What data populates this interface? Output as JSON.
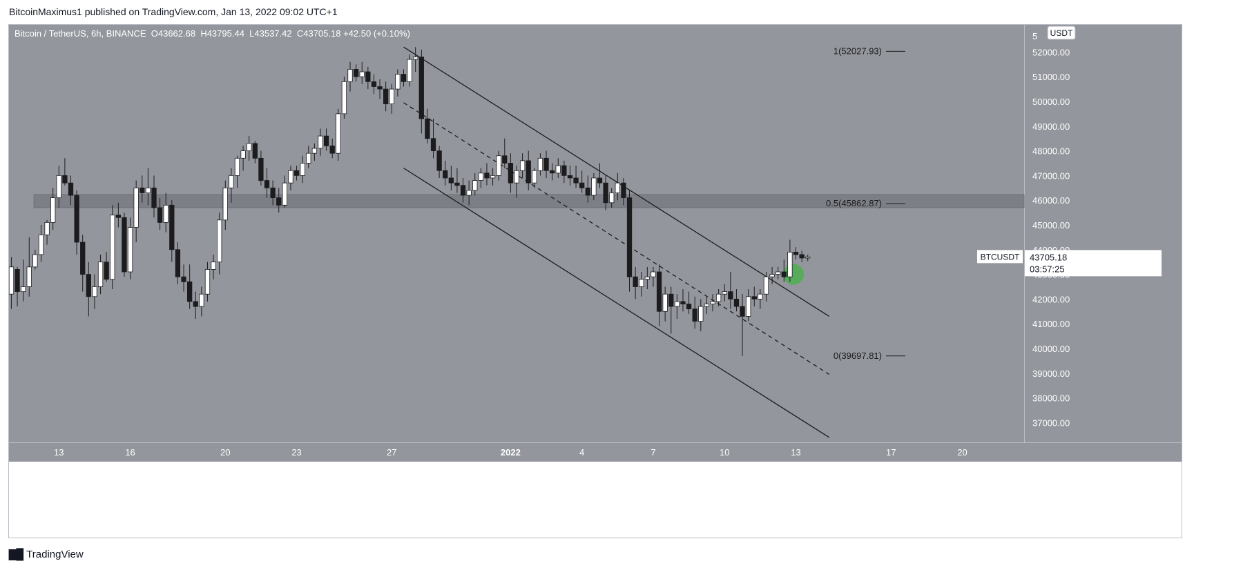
{
  "header": {
    "published_line": "BitcoinMaximus1 published on TradingView.com, Jan 13, 2022 09:02 UTC+1"
  },
  "footer": {
    "brand_label": "TradingView",
    "logo_icon": "tradingview-logo-icon"
  },
  "chart_data": {
    "type": "candlestick",
    "symbol_line": "Bitcoin / TetherUS, 6h, BINANCE",
    "ohlc_line": {
      "o_label": "O",
      "o_value": "43662.68",
      "h_label": "H",
      "h_value": "43795.44",
      "l_label": "L",
      "l_value": "43537.42",
      "c_label": "C",
      "c_value": "43705.18",
      "change": "+42.50 (+0.10%)"
    },
    "currency_badge": "USDT",
    "price_scale": {
      "ylim": [
        36200,
        53100
      ],
      "ticks": [
        "52000.00",
        "51000.00",
        "50000.00",
        "49000.00",
        "48000.00",
        "47000.00",
        "46000.00",
        "45000.00",
        "44000.00",
        "43000.00",
        "42000.00",
        "41000.00",
        "40000.00",
        "39000.00",
        "38000.00",
        "37000.00"
      ],
      "top_partial_tick": "5"
    },
    "time_axis": {
      "labels": [
        {
          "text": "13",
          "day": 0
        },
        {
          "text": "16",
          "day": 3
        },
        {
          "text": "20",
          "day": 7
        },
        {
          "text": "23",
          "day": 10
        },
        {
          "text": "27",
          "day": 14
        },
        {
          "text": "2022",
          "day": 19,
          "bold": true
        },
        {
          "text": "4",
          "day": 22
        },
        {
          "text": "7",
          "day": 25
        },
        {
          "text": "10",
          "day": 28
        },
        {
          "text": "13",
          "day": 31
        },
        {
          "text": "17",
          "day": 35
        },
        {
          "text": "20",
          "day": 38
        }
      ],
      "day_range": [
        -2.1,
        40.6
      ]
    },
    "current_price": {
      "symbol": "BTCUSDT",
      "price": "43705.18",
      "countdown": "03:57:25",
      "value": 43705.18
    },
    "fib_levels": [
      {
        "label": "1(52027.93)",
        "value": 52027.93
      },
      {
        "label": "0.5(45862.87)",
        "value": 45862.87
      },
      {
        "label": "0(39697.81)",
        "value": 39697.81
      }
    ],
    "support_zone": {
      "from_day": -1.05,
      "to_day": 40.6,
      "low": 45700,
      "high": 46230
    },
    "channel": {
      "upper": {
        "from": [
          14.5,
          52200
        ],
        "to": [
          32.4,
          41300
        ]
      },
      "middle": {
        "from": [
          14.5,
          49950
        ],
        "to": [
          32.4,
          38950
        ]
      },
      "lower": {
        "from": [
          14.5,
          47300
        ],
        "to": [
          32.4,
          36400
        ]
      }
    },
    "highlight_circle": {
      "day": 30.9,
      "price": 43000,
      "color": "#4caf50"
    },
    "colors": {
      "background": "#93969c",
      "up_candle": "#ffffff",
      "down_candle": "#1c1c1f",
      "wick": "#1c1c1f",
      "channel_line": "#1c1c1f",
      "zone": "#7c7f85",
      "text": "#ffffff"
    },
    "candles": [
      [
        -2.0,
        42200,
        43700,
        41600,
        43300
      ],
      [
        -1.75,
        43200,
        43300,
        41700,
        42300
      ],
      [
        -1.5,
        42300,
        43600,
        41900,
        42500
      ],
      [
        -1.25,
        42500,
        44500,
        42100,
        43300
      ],
      [
        -1.0,
        43300,
        44000,
        43200,
        43800
      ],
      [
        -0.75,
        43800,
        45000,
        43500,
        44600
      ],
      [
        -0.5,
        44600,
        45200,
        44200,
        45100
      ],
      [
        -0.25,
        45100,
        46500,
        44800,
        46100
      ],
      [
        0.0,
        46100,
        47400,
        45700,
        47000
      ],
      [
        0.25,
        47000,
        47700,
        46600,
        46700
      ],
      [
        0.5,
        46700,
        47000,
        45800,
        46200
      ],
      [
        0.75,
        46200,
        46400,
        43800,
        44300
      ],
      [
        1.0,
        44300,
        44600,
        42300,
        43000
      ],
      [
        1.25,
        43000,
        43500,
        41300,
        42100
      ],
      [
        1.5,
        42100,
        43000,
        41600,
        42500
      ],
      [
        1.75,
        42500,
        43800,
        42200,
        43500
      ],
      [
        2.0,
        43500,
        43900,
        42700,
        42800
      ],
      [
        2.25,
        42800,
        45800,
        42400,
        45400
      ],
      [
        2.5,
        45400,
        45900,
        44900,
        45300
      ],
      [
        2.75,
        45300,
        45500,
        42900,
        43100
      ],
      [
        3.0,
        43100,
        45300,
        42800,
        44900
      ],
      [
        3.25,
        44900,
        46800,
        44300,
        46500
      ],
      [
        3.5,
        46500,
        47000,
        45900,
        46300
      ],
      [
        3.75,
        46300,
        47300,
        45800,
        46500
      ],
      [
        4.0,
        46500,
        47000,
        45300,
        45700
      ],
      [
        4.25,
        45700,
        46100,
        44800,
        45100
      ],
      [
        4.5,
        45100,
        46300,
        44700,
        45800
      ],
      [
        4.75,
        45800,
        46000,
        43500,
        44000
      ],
      [
        5.0,
        44000,
        44300,
        42600,
        42900
      ],
      [
        5.25,
        42900,
        43400,
        42300,
        42700
      ],
      [
        5.5,
        42700,
        43400,
        41600,
        41900
      ],
      [
        5.75,
        41900,
        42300,
        41200,
        41700
      ],
      [
        6.0,
        41700,
        42500,
        41300,
        42200
      ],
      [
        6.25,
        42200,
        43500,
        41900,
        43200
      ],
      [
        6.5,
        43200,
        43800,
        42800,
        43500
      ],
      [
        6.75,
        43500,
        45500,
        43000,
        45200
      ],
      [
        7.0,
        45200,
        46800,
        44800,
        46500
      ],
      [
        7.25,
        46500,
        47300,
        45900,
        47000
      ],
      [
        7.5,
        47000,
        47800,
        46500,
        47700
      ],
      [
        7.75,
        47700,
        48200,
        47200,
        48000
      ],
      [
        8.0,
        48000,
        48600,
        47600,
        48300
      ],
      [
        8.25,
        48300,
        48400,
        47500,
        47700
      ],
      [
        8.5,
        47700,
        48000,
        46600,
        46800
      ],
      [
        8.75,
        46800,
        47300,
        46100,
        46500
      ],
      [
        9.0,
        46500,
        46800,
        45800,
        46100
      ],
      [
        9.25,
        46100,
        46500,
        45500,
        45800
      ],
      [
        9.5,
        45800,
        47000,
        45700,
        46700
      ],
      [
        9.75,
        46700,
        47400,
        46400,
        47200
      ],
      [
        10.0,
        47200,
        47400,
        46800,
        47000
      ],
      [
        10.25,
        47000,
        47800,
        46700,
        47500
      ],
      [
        10.5,
        47500,
        48200,
        47300,
        47900
      ],
      [
        10.75,
        47900,
        48300,
        47600,
        48100
      ],
      [
        11.0,
        48100,
        48900,
        47800,
        48600
      ],
      [
        11.25,
        48600,
        48900,
        48000,
        48200
      ],
      [
        11.5,
        48200,
        48500,
        47700,
        47900
      ],
      [
        11.75,
        47900,
        49700,
        47600,
        49500
      ],
      [
        12.0,
        49500,
        51000,
        49300,
        50800
      ],
      [
        12.25,
        50800,
        51600,
        50400,
        51300
      ],
      [
        12.5,
        51300,
        51500,
        50800,
        51000
      ],
      [
        12.75,
        51000,
        51600,
        50700,
        51200
      ],
      [
        13.0,
        51200,
        51400,
        50500,
        50800
      ],
      [
        13.25,
        50800,
        51100,
        50300,
        50600
      ],
      [
        13.5,
        50600,
        50900,
        50100,
        50500
      ],
      [
        13.75,
        50500,
        50800,
        49600,
        49900
      ],
      [
        14.0,
        49900,
        50700,
        49500,
        50500
      ],
      [
        14.25,
        50500,
        51300,
        50200,
        51100
      ],
      [
        14.5,
        51100,
        51300,
        50600,
        50800
      ],
      [
        14.75,
        50800,
        51900,
        50600,
        51700
      ],
      [
        15.0,
        51700,
        52200,
        51200,
        51800
      ],
      [
        15.25,
        51800,
        52100,
        48700,
        49300
      ],
      [
        15.5,
        49300,
        49700,
        48300,
        48500
      ],
      [
        15.75,
        48500,
        49300,
        47700,
        48000
      ],
      [
        16.0,
        48000,
        48200,
        46900,
        47200
      ],
      [
        16.25,
        47200,
        47600,
        46600,
        46900
      ],
      [
        16.5,
        46900,
        47400,
        46400,
        46700
      ],
      [
        16.75,
        46700,
        47300,
        46300,
        46600
      ],
      [
        17.0,
        46600,
        46900,
        45900,
        46200
      ],
      [
        17.25,
        46200,
        46800,
        45800,
        46400
      ],
      [
        17.5,
        46400,
        47100,
        46200,
        46800
      ],
      [
        17.75,
        46800,
        47300,
        46500,
        47100
      ],
      [
        18.0,
        47100,
        47500,
        46600,
        46900
      ],
      [
        18.25,
        46900,
        47300,
        46600,
        47000
      ],
      [
        18.5,
        47000,
        48000,
        46800,
        47800
      ],
      [
        18.75,
        47800,
        48500,
        47300,
        47500
      ],
      [
        19.0,
        47500,
        47900,
        46300,
        46700
      ],
      [
        19.25,
        46700,
        47400,
        46100,
        47200
      ],
      [
        19.5,
        47200,
        47900,
        46900,
        47600
      ],
      [
        19.75,
        47600,
        48000,
        46400,
        46700
      ],
      [
        20.0,
        46700,
        47300,
        46500,
        47200
      ],
      [
        20.25,
        47200,
        47900,
        47000,
        47700
      ],
      [
        20.5,
        47700,
        48000,
        46900,
        47200
      ],
      [
        20.75,
        47200,
        47500,
        46800,
        47100
      ],
      [
        21.0,
        47100,
        47700,
        46900,
        47400
      ],
      [
        21.25,
        47400,
        47600,
        46700,
        47000
      ],
      [
        21.5,
        47000,
        47400,
        46600,
        46900
      ],
      [
        21.75,
        46900,
        47400,
        46500,
        46700
      ],
      [
        22.0,
        46700,
        47200,
        46300,
        46500
      ],
      [
        22.25,
        46500,
        47000,
        45900,
        46200
      ],
      [
        22.5,
        46200,
        47100,
        46000,
        46900
      ],
      [
        22.75,
        46900,
        47500,
        46500,
        46700
      ],
      [
        23.0,
        46700,
        47000,
        45600,
        45900
      ],
      [
        23.25,
        45900,
        46500,
        45700,
        46300
      ],
      [
        23.5,
        46300,
        47100,
        46000,
        46700
      ],
      [
        23.75,
        46700,
        46900,
        45800,
        46100
      ],
      [
        24.0,
        46100,
        46400,
        42300,
        42900
      ],
      [
        24.25,
        42900,
        43300,
        42000,
        42500
      ],
      [
        24.5,
        42500,
        43100,
        42100,
        42800
      ],
      [
        24.75,
        42800,
        43300,
        42400,
        42900
      ],
      [
        25.0,
        42900,
        43300,
        42500,
        43100
      ],
      [
        25.25,
        43100,
        43400,
        40900,
        41500
      ],
      [
        25.5,
        41500,
        42500,
        41100,
        42200
      ],
      [
        25.75,
        42200,
        42500,
        40600,
        41700
      ],
      [
        26.0,
        41700,
        42200,
        41200,
        41900
      ],
      [
        26.25,
        41900,
        42400,
        41500,
        41800
      ],
      [
        26.5,
        41800,
        42300,
        41400,
        41600
      ],
      [
        26.75,
        41600,
        42100,
        40800,
        41100
      ],
      [
        27.0,
        41100,
        42000,
        40700,
        41700
      ],
      [
        27.25,
        41700,
        42100,
        41400,
        41800
      ],
      [
        27.5,
        41800,
        42200,
        41500,
        41900
      ],
      [
        27.75,
        41900,
        42400,
        41700,
        42200
      ],
      [
        28.0,
        42200,
        42600,
        41900,
        42300
      ],
      [
        28.25,
        42300,
        43100,
        41600,
        42000
      ],
      [
        28.5,
        42000,
        42400,
        41500,
        41700
      ],
      [
        28.75,
        41700,
        42200,
        39700,
        41300
      ],
      [
        29.0,
        41300,
        42400,
        41100,
        42100
      ],
      [
        29.25,
        42100,
        42500,
        41700,
        42000
      ],
      [
        29.5,
        42000,
        42400,
        41600,
        42200
      ],
      [
        29.75,
        42200,
        43100,
        41900,
        42900
      ],
      [
        30.0,
        42900,
        43300,
        42600,
        43000
      ],
      [
        30.25,
        43000,
        43300,
        42800,
        43100
      ],
      [
        30.5,
        43100,
        43600,
        42700,
        42900
      ],
      [
        30.75,
        42900,
        44400,
        42700,
        43900
      ],
      [
        31.0,
        43900,
        44100,
        43600,
        43800
      ],
      [
        31.25,
        43800,
        43950,
        43500,
        43660
      ],
      [
        31.5,
        43660,
        43795,
        43537,
        43705
      ]
    ]
  }
}
